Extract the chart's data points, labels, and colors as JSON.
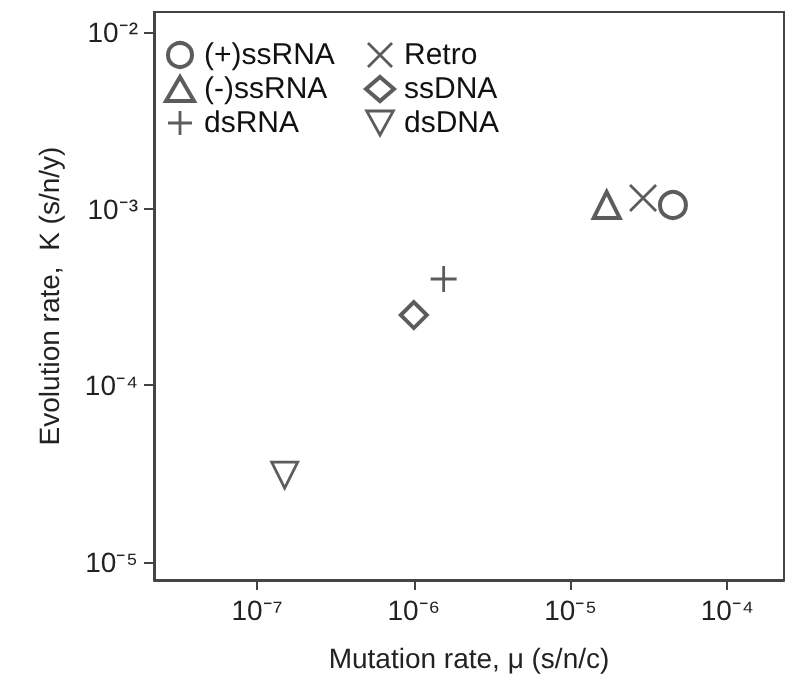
{
  "chart_data": {
    "type": "scatter",
    "xlabel": "Mutation rate, μ (s/n/c)",
    "ylabel": "Evolution rate,  K (s/n/y)",
    "log": "xy",
    "grid": false,
    "legend": "top left",
    "xlim": [
      2.2e-08,
      0.00023
    ],
    "ylim": [
      7.9e-06,
      0.013
    ],
    "xticks": [
      {
        "value": 1e-07,
        "label": "10⁻⁷"
      },
      {
        "value": 1e-06,
        "label": "10⁻⁶"
      },
      {
        "value": 1e-05,
        "label": "10⁻⁵"
      },
      {
        "value": 0.0001,
        "label": "10⁻⁴"
      }
    ],
    "yticks": [
      {
        "value": 1e-05,
        "label": "10⁻⁵"
      },
      {
        "value": 0.0001,
        "label": "10⁻⁴"
      },
      {
        "value": 0.001,
        "label": "10⁻³"
      },
      {
        "value": 0.01,
        "label": "10⁻²"
      }
    ],
    "series": [
      {
        "name": "(+)ssRNA",
        "color": "#333333",
        "marker": "circle",
        "x": [
          4.5e-05
        ],
        "values": [
          0.00105
        ]
      },
      {
        "name": "(-)ssRNA",
        "color": "#333333",
        "marker": "triangle",
        "x": [
          1.7e-05
        ],
        "values": [
          0.00105
        ]
      },
      {
        "name": "dsRNA",
        "color": "#333333",
        "marker": "cross",
        "x": [
          1.55e-06
        ],
        "values": [
          0.0004
        ]
      },
      {
        "name": "Retro",
        "color": "#333333",
        "marker": "x",
        "x": [
          2.9e-05
        ],
        "values": [
          0.00115
        ]
      },
      {
        "name": "ssDNA",
        "color": "#333333",
        "marker": "diamond",
        "x": [
          1e-06
        ],
        "values": [
          0.00025
        ]
      },
      {
        "name": "dsDNA",
        "color": "#333333",
        "marker": "triangle-down",
        "x": [
          1.5e-07
        ],
        "values": [
          3.1e-05
        ]
      }
    ]
  }
}
